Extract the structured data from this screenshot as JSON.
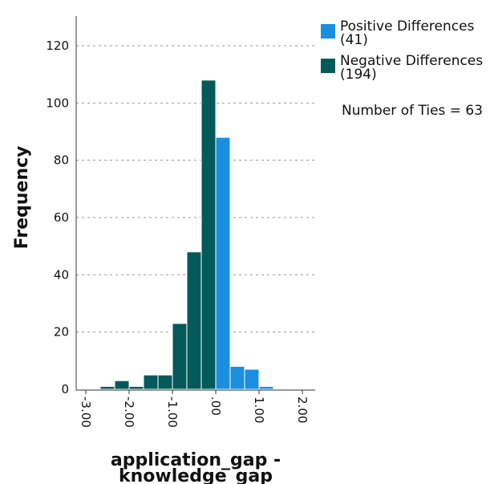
{
  "chart_data": {
    "type": "bar",
    "title": "",
    "xlabel_line1": "application_gap -",
    "xlabel_line2": "knowledge_gap",
    "ylabel": "Frequency",
    "ylim": [
      0,
      132
    ],
    "yticks": [
      0,
      20,
      40,
      60,
      80,
      100,
      120
    ],
    "xlim": [
      -3.25,
      2.25
    ],
    "xticks": [
      -3.0,
      -2.0,
      -1.0,
      0.0,
      1.0,
      2.0
    ],
    "xtick_labels": [
      "-3.00",
      "-2.00",
      "-1.00",
      ".00",
      "1.00",
      "2.00"
    ],
    "grid": "horizontal-dashed",
    "legend_position": "top-right",
    "series": [
      {
        "name": "Positive Differences (41)",
        "legend_line1": "Positive Differences",
        "legend_line2": "(41)",
        "color": "#1a8fe0",
        "bins": [
          {
            "start": 0.0,
            "end": 0.333,
            "value": 88
          },
          {
            "start": 0.333,
            "end": 0.667,
            "value": 8
          },
          {
            "start": 0.667,
            "end": 1.0,
            "value": 7
          },
          {
            "start": 1.0,
            "end": 1.333,
            "value": 1
          }
        ]
      },
      {
        "name": "Negative Differences (194)",
        "legend_line1": "Negative Differences",
        "legend_line2": "(194)",
        "color": "#045a5a",
        "bins": [
          {
            "start": -2.667,
            "end": -2.333,
            "value": 1
          },
          {
            "start": -2.333,
            "end": -2.0,
            "value": 3
          },
          {
            "start": -2.0,
            "end": -1.667,
            "value": 1
          },
          {
            "start": -1.667,
            "end": -1.333,
            "value": 5
          },
          {
            "start": -1.333,
            "end": -1.0,
            "value": 5
          },
          {
            "start": -1.0,
            "end": -0.667,
            "value": 23
          },
          {
            "start": -0.667,
            "end": -0.333,
            "value": 48
          },
          {
            "start": -0.333,
            "end": 0.0,
            "value": 108
          }
        ]
      }
    ],
    "annotation": "Number of Ties = 63"
  }
}
